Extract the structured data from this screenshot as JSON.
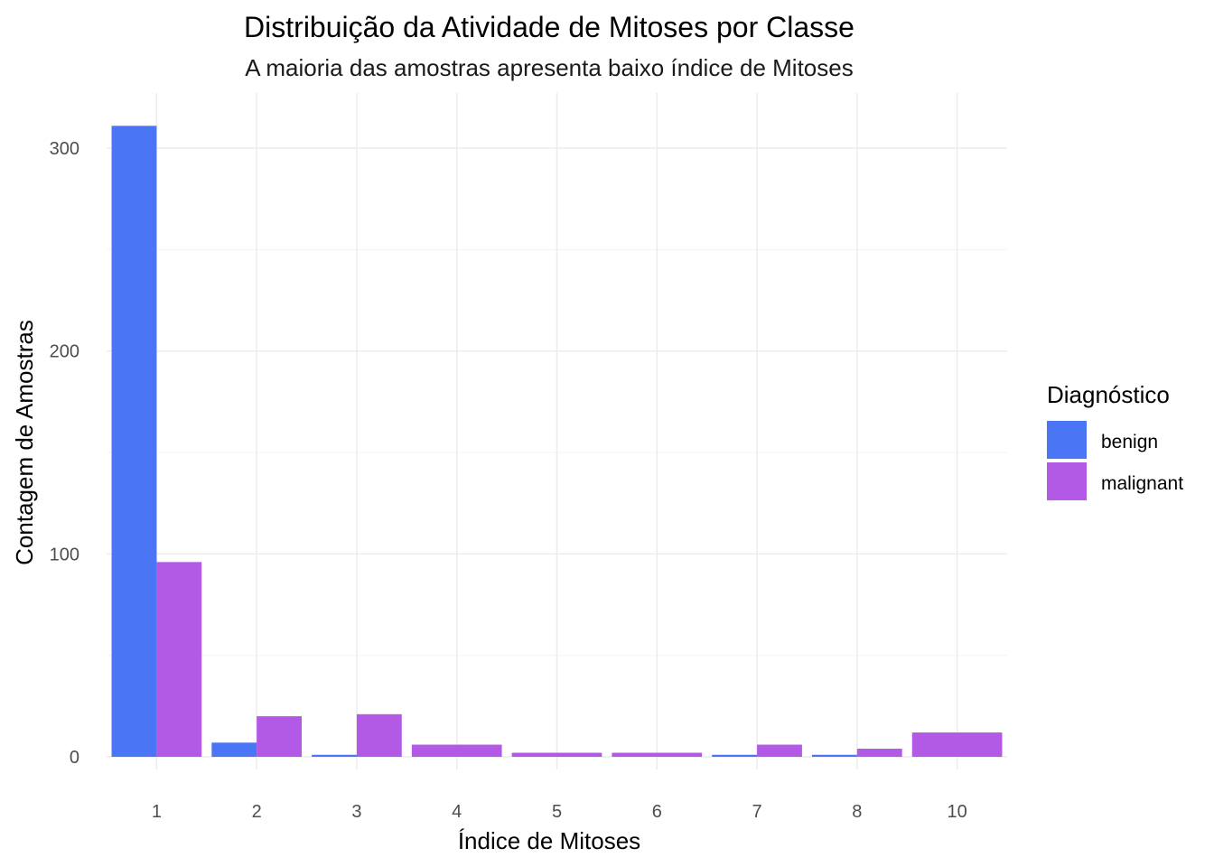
{
  "chart_data": {
    "type": "bar",
    "title": "Distribuição da Atividade de Mitoses por Classe",
    "subtitle": "A maioria das amostras apresenta baixo índice de Mitoses",
    "xlabel": "Índice de Mitoses",
    "ylabel": "Contagem de Amostras",
    "categories": [
      "1",
      "2",
      "3",
      "4",
      "5",
      "6",
      "7",
      "8",
      "10"
    ],
    "series": [
      {
        "name": "benign",
        "color": "#4a76f5",
        "values": [
          311,
          7,
          1,
          null,
          null,
          null,
          1,
          1,
          null
        ]
      },
      {
        "name": "malignant",
        "color": "#b25ae6",
        "values": [
          96,
          20,
          21,
          null,
          null,
          null,
          6,
          4,
          null
        ]
      }
    ],
    "combined": [
      null,
      null,
      null,
      6,
      2,
      2,
      null,
      null,
      12
    ],
    "ylim": [
      0,
      320
    ],
    "yticks": [
      0,
      100,
      200,
      300
    ],
    "grid": true,
    "legend": {
      "title": "Diagnóstico",
      "placement": "right",
      "labels": [
        "benign",
        "malignant"
      ]
    }
  }
}
